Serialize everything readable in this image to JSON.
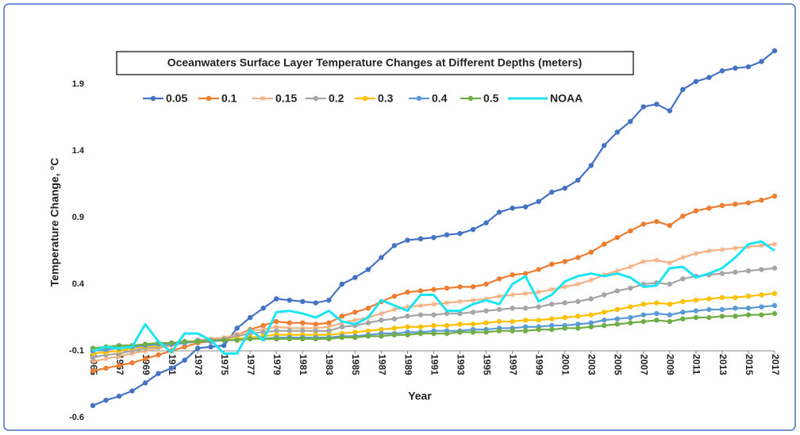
{
  "chart_data": {
    "type": "line",
    "title": "Oceanwaters Surface Layer Temperature Changes at Different Depths (meters)",
    "xlabel": "Year",
    "ylabel": "Temperature Change, °C",
    "x": [
      1965,
      1966,
      1967,
      1968,
      1969,
      1970,
      1971,
      1972,
      1973,
      1974,
      1975,
      1976,
      1977,
      1978,
      1979,
      1980,
      1981,
      1982,
      1983,
      1984,
      1985,
      1986,
      1987,
      1988,
      1989,
      1990,
      1991,
      1992,
      1993,
      1994,
      1995,
      1996,
      1997,
      1998,
      1999,
      2000,
      2001,
      2002,
      2003,
      2004,
      2005,
      2006,
      2007,
      2008,
      2009,
      2010,
      2011,
      2012,
      2013,
      2014,
      2015,
      2016,
      2017
    ],
    "xlim": [
      1965,
      2017
    ],
    "xticks": [
      1965,
      1967,
      1969,
      1971,
      1973,
      1975,
      1977,
      1979,
      1981,
      1983,
      1985,
      1987,
      1989,
      1991,
      1993,
      1995,
      1997,
      1999,
      2001,
      2003,
      2005,
      2007,
      2009,
      2011,
      2013,
      2015,
      2017
    ],
    "ylim": [
      -0.6,
      2.2
    ],
    "yticks": [
      -0.6,
      -0.1,
      0.4,
      0.9,
      1.4,
      1.9
    ],
    "x_axis_crosses": -0.1,
    "grid": false,
    "series": [
      {
        "name": "0.05",
        "color": "#4472c4",
        "marker": "circle",
        "values": [
          -0.51,
          -0.47,
          -0.44,
          -0.4,
          -0.34,
          -0.27,
          -0.23,
          -0.17,
          -0.08,
          -0.07,
          -0.06,
          0.07,
          0.15,
          0.22,
          0.29,
          0.28,
          0.27,
          0.26,
          0.28,
          0.4,
          0.45,
          0.51,
          0.6,
          0.69,
          0.73,
          0.74,
          0.75,
          0.77,
          0.78,
          0.81,
          0.86,
          0.94,
          0.97,
          0.98,
          1.02,
          1.09,
          1.12,
          1.18,
          1.29,
          1.44,
          1.54,
          1.62,
          1.73,
          1.75,
          1.7,
          1.86,
          1.92,
          1.95,
          2.0,
          2.02,
          2.03,
          2.07,
          2.15
        ]
      },
      {
        "name": "0.1",
        "color": "#ed7d31",
        "marker": "circle",
        "values": [
          -0.25,
          -0.23,
          -0.21,
          -0.19,
          -0.16,
          -0.13,
          -0.1,
          -0.07,
          -0.04,
          -0.03,
          -0.02,
          0.02,
          0.06,
          0.09,
          0.12,
          0.11,
          0.11,
          0.1,
          0.11,
          0.16,
          0.19,
          0.22,
          0.27,
          0.31,
          0.34,
          0.35,
          0.36,
          0.37,
          0.38,
          0.38,
          0.4,
          0.44,
          0.47,
          0.48,
          0.51,
          0.55,
          0.57,
          0.6,
          0.64,
          0.7,
          0.75,
          0.8,
          0.85,
          0.87,
          0.84,
          0.91,
          0.95,
          0.97,
          0.99,
          1.0,
          1.01,
          1.03,
          1.06
        ]
      },
      {
        "name": "0.15",
        "color": "#f4b183",
        "marker": "star",
        "values": [
          -0.18,
          -0.16,
          -0.14,
          -0.12,
          -0.1,
          -0.08,
          -0.06,
          -0.04,
          -0.02,
          -0.01,
          0.0,
          0.02,
          0.05,
          0.06,
          0.08,
          0.07,
          0.07,
          0.07,
          0.08,
          0.11,
          0.13,
          0.15,
          0.18,
          0.21,
          0.23,
          0.24,
          0.25,
          0.26,
          0.27,
          0.28,
          0.29,
          0.31,
          0.32,
          0.33,
          0.34,
          0.36,
          0.38,
          0.4,
          0.43,
          0.47,
          0.5,
          0.53,
          0.57,
          0.58,
          0.56,
          0.6,
          0.63,
          0.65,
          0.66,
          0.67,
          0.68,
          0.69,
          0.7
        ]
      },
      {
        "name": "0.2",
        "color": "#a5a5a5",
        "marker": "circle",
        "values": [
          -0.15,
          -0.13,
          -0.12,
          -0.1,
          -0.08,
          -0.07,
          -0.05,
          -0.04,
          -0.02,
          -0.02,
          -0.01,
          0.01,
          0.03,
          0.04,
          0.05,
          0.05,
          0.05,
          0.05,
          0.05,
          0.08,
          0.09,
          0.11,
          0.13,
          0.14,
          0.16,
          0.17,
          0.17,
          0.18,
          0.18,
          0.19,
          0.2,
          0.21,
          0.22,
          0.22,
          0.23,
          0.25,
          0.26,
          0.27,
          0.29,
          0.32,
          0.35,
          0.37,
          0.4,
          0.41,
          0.4,
          0.44,
          0.46,
          0.47,
          0.48,
          0.49,
          0.5,
          0.51,
          0.52
        ]
      },
      {
        "name": "0.3",
        "color": "#ffc000",
        "marker": "circle",
        "values": [
          -0.12,
          -0.11,
          -0.1,
          -0.08,
          -0.07,
          -0.06,
          -0.05,
          -0.04,
          -0.03,
          -0.02,
          -0.02,
          -0.01,
          0.0,
          0.01,
          0.02,
          0.02,
          0.02,
          0.02,
          0.02,
          0.03,
          0.04,
          0.05,
          0.06,
          0.07,
          0.08,
          0.08,
          0.09,
          0.09,
          0.1,
          0.1,
          0.11,
          0.12,
          0.12,
          0.13,
          0.13,
          0.14,
          0.15,
          0.16,
          0.17,
          0.19,
          0.21,
          0.23,
          0.25,
          0.26,
          0.25,
          0.27,
          0.28,
          0.29,
          0.3,
          0.3,
          0.31,
          0.32,
          0.33
        ]
      },
      {
        "name": "0.4",
        "color": "#5b9bd5",
        "marker": "circle",
        "values": [
          -0.1,
          -0.09,
          -0.08,
          -0.07,
          -0.06,
          -0.05,
          -0.05,
          -0.04,
          -0.03,
          -0.03,
          -0.02,
          -0.02,
          -0.01,
          -0.01,
          0.0,
          0.0,
          0.0,
          0.0,
          0.0,
          0.01,
          0.01,
          0.02,
          0.03,
          0.03,
          0.04,
          0.04,
          0.05,
          0.05,
          0.05,
          0.06,
          0.06,
          0.07,
          0.07,
          0.08,
          0.08,
          0.09,
          0.09,
          0.1,
          0.11,
          0.13,
          0.14,
          0.15,
          0.17,
          0.18,
          0.17,
          0.19,
          0.2,
          0.21,
          0.21,
          0.22,
          0.22,
          0.23,
          0.24
        ]
      },
      {
        "name": "0.5",
        "color": "#70ad47",
        "marker": "circle",
        "values": [
          -0.08,
          -0.07,
          -0.06,
          -0.06,
          -0.05,
          -0.04,
          -0.04,
          -0.03,
          -0.03,
          -0.02,
          -0.02,
          -0.02,
          -0.01,
          -0.01,
          -0.01,
          -0.01,
          -0.01,
          -0.01,
          -0.01,
          0.0,
          0.0,
          0.01,
          0.01,
          0.02,
          0.02,
          0.03,
          0.03,
          0.03,
          0.04,
          0.04,
          0.04,
          0.05,
          0.05,
          0.05,
          0.06,
          0.06,
          0.07,
          0.07,
          0.08,
          0.09,
          0.1,
          0.11,
          0.12,
          0.13,
          0.12,
          0.14,
          0.15,
          0.15,
          0.16,
          0.16,
          0.17,
          0.17,
          0.18
        ]
      },
      {
        "name": "NOAA",
        "color": "#1de4f2",
        "marker": "none",
        "values": [
          -0.1,
          -0.07,
          -0.08,
          -0.07,
          0.1,
          -0.03,
          -0.11,
          0.03,
          0.03,
          -0.02,
          -0.12,
          -0.12,
          0.06,
          -0.02,
          0.19,
          0.2,
          0.18,
          0.15,
          0.2,
          0.12,
          0.1,
          0.15,
          0.28,
          0.24,
          0.2,
          0.32,
          0.32,
          0.2,
          0.2,
          0.25,
          0.28,
          0.25,
          0.4,
          0.46,
          0.27,
          0.32,
          0.42,
          0.46,
          0.48,
          0.46,
          0.48,
          0.45,
          0.38,
          0.39,
          0.52,
          0.53,
          0.45,
          0.48,
          0.52,
          0.6,
          0.7,
          0.72,
          0.65
        ]
      }
    ]
  }
}
